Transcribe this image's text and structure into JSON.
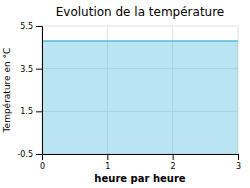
{
  "chart_data": {
    "type": "area",
    "title": "Evolution de la température",
    "xlabel": "heure par heure",
    "ylabel": "Température en °C",
    "x": [
      0,
      3
    ],
    "values": [
      4.8,
      4.8
    ],
    "color": "#55bbdd",
    "xlim": [
      0,
      3
    ],
    "ylim": [
      -0.5,
      5.5
    ],
    "xticks": [
      0,
      1,
      2,
      3
    ],
    "yticks": [
      -0.5,
      1.5,
      3.5,
      5.5
    ],
    "grid": true
  }
}
